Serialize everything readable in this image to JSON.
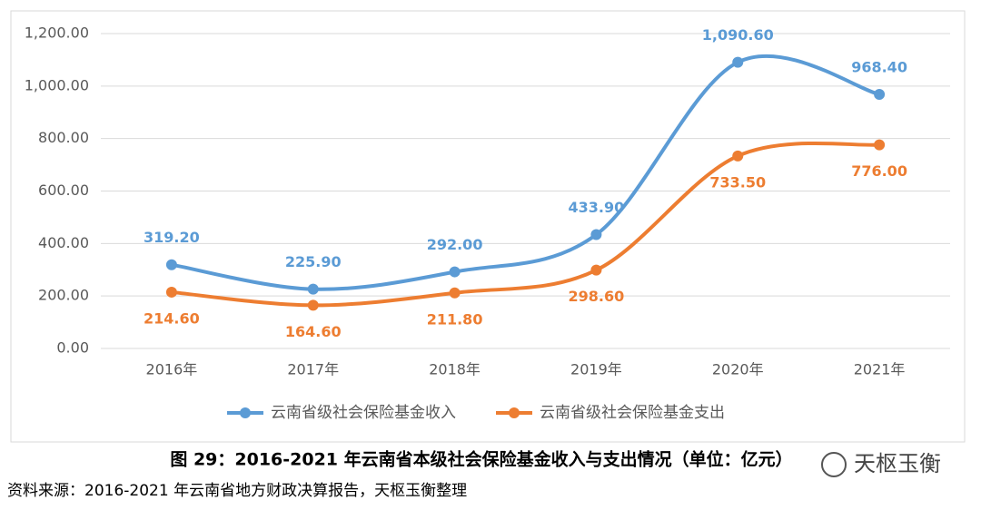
{
  "chart_data": {
    "type": "line",
    "title": "图 29：2016-2021 年云南省本级社会保险基金收入与支出情况（单位：亿元）",
    "source": "资料来源：2016-2021 年云南省地方财政决算报告，天枢玉衡整理",
    "categories": [
      "2016年",
      "2017年",
      "2018年",
      "2019年",
      "2020年",
      "2021年"
    ],
    "series": [
      {
        "name": "云南省级社会保险基金收入",
        "color": "#5b9bd5",
        "values": [
          319.2,
          225.9,
          292.0,
          433.9,
          1090.6,
          968.4
        ],
        "value_labels": [
          "319.20",
          "225.90",
          "292.00",
          "433.90",
          "1,090.60",
          "968.40"
        ]
      },
      {
        "name": "云南省级社会保险基金支出",
        "color": "#ed7d31",
        "values": [
          214.6,
          164.6,
          211.8,
          298.6,
          733.5,
          776.0
        ],
        "value_labels": [
          "214.60",
          "164.60",
          "211.80",
          "298.60",
          "733.50",
          "776.00"
        ]
      }
    ],
    "ylim": [
      0,
      1200
    ],
    "yticks": [
      {
        "value": 0,
        "label": "0.00"
      },
      {
        "value": 200,
        "label": "200.00"
      },
      {
        "value": 400,
        "label": "400.00"
      },
      {
        "value": 600,
        "label": "600.00"
      },
      {
        "value": 800,
        "label": "800.00"
      },
      {
        "value": 1000,
        "label": "1,000.00"
      },
      {
        "value": 1200,
        "label": "1,200.00"
      }
    ],
    "grid": true,
    "smooth": true,
    "legend": "bottom"
  },
  "watermark": "天枢玉衡"
}
